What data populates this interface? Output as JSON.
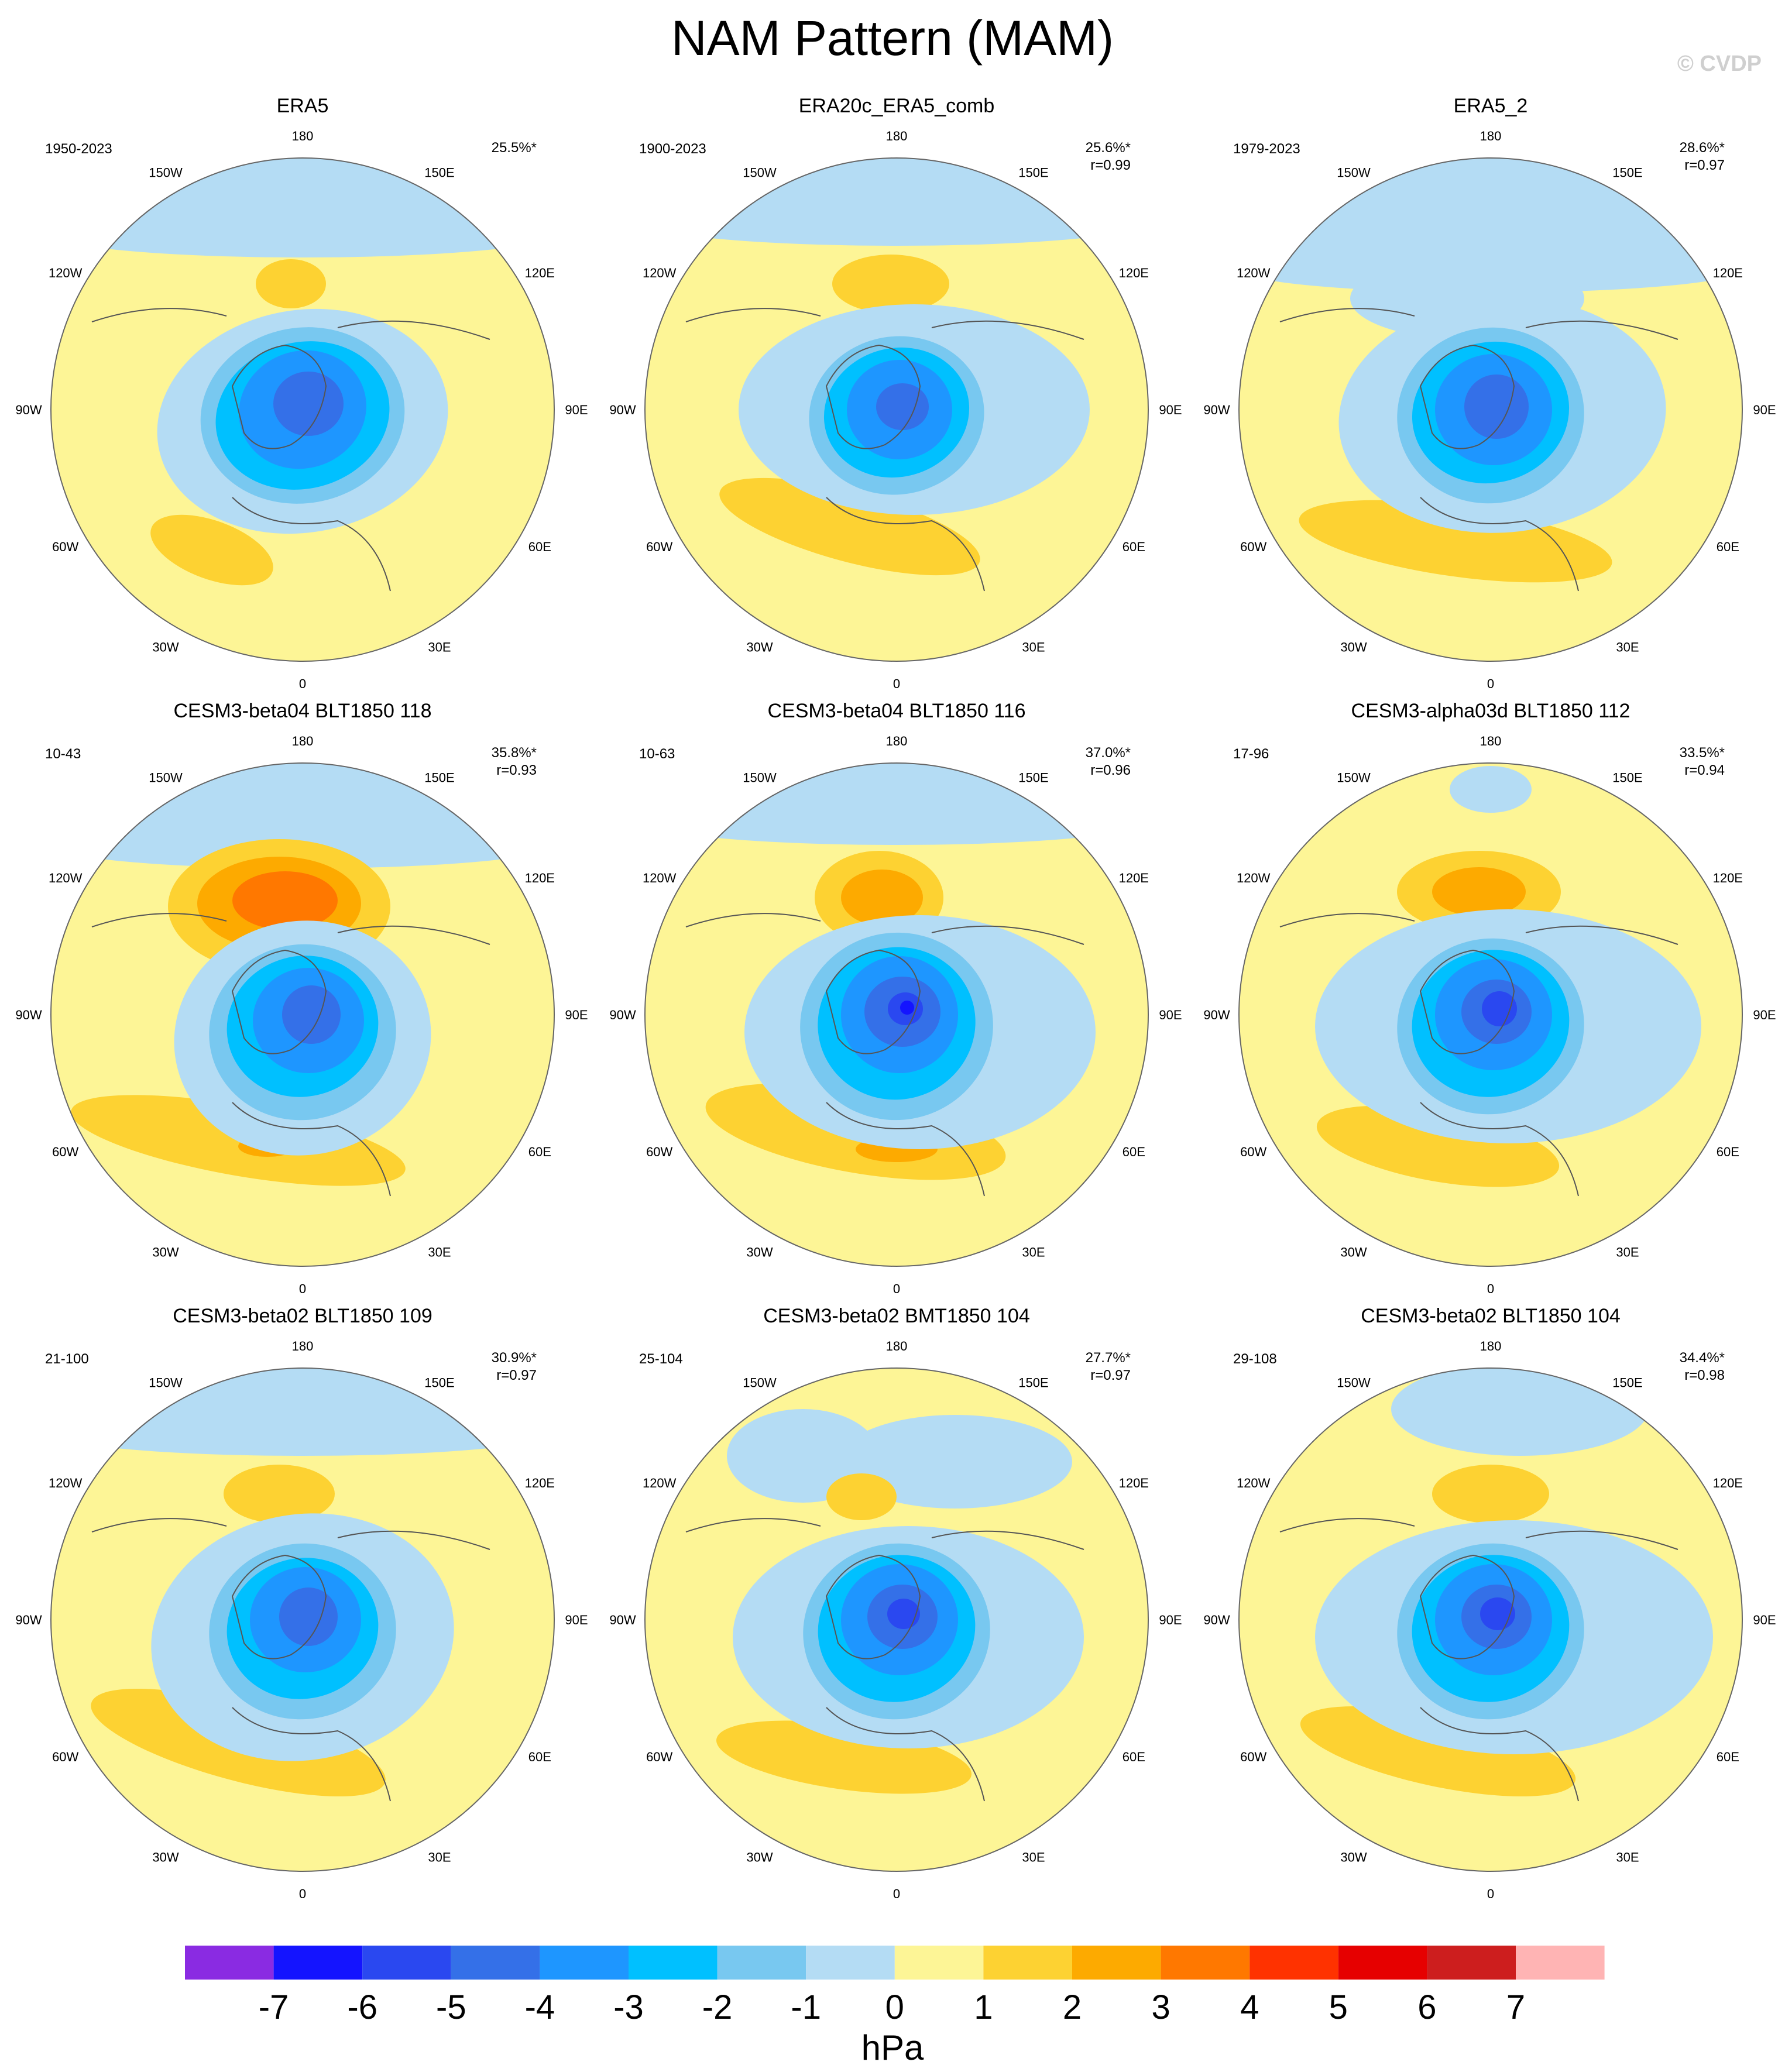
{
  "title": "NAM Pattern (MAM)",
  "watermark": "© CVDP",
  "units": "hPa",
  "lon_labels": [
    "180",
    "150E",
    "120E",
    "90E",
    "60E",
    "30E",
    "0",
    "30W",
    "60W",
    "90W",
    "120W",
    "150W"
  ],
  "chart_data": {
    "type": "contour-map",
    "projection": "north-polar-stereographic",
    "levels": [
      -7,
      -6,
      -5,
      -4,
      -3,
      -2,
      -1,
      0,
      1,
      2,
      3,
      4,
      5,
      6,
      7
    ],
    "colors": [
      "#8a2be2",
      "#1414ff",
      "#2a48f0",
      "#3470e8",
      "#1e96ff",
      "#00c0ff",
      "#78c8f0",
      "#b4dcf4",
      "#fdf596",
      "#fdd232",
      "#fdaa00",
      "#ff7800",
      "#ff3200",
      "#e60000",
      "#cd1e1e",
      "#ffb4b4"
    ],
    "panels": [
      {
        "name": "ERA5",
        "period": "1950-2023",
        "pct": "25.5%*",
        "r": ""
      },
      {
        "name": "ERA20c_ERA5_comb",
        "period": "1900-2023",
        "pct": "25.6%*",
        "r": "r=0.99"
      },
      {
        "name": "ERA5_2",
        "period": "1979-2023",
        "pct": "28.6%*",
        "r": "r=0.97"
      },
      {
        "name": "CESM3-beta04 BLT1850 118",
        "period": "10-43",
        "pct": "35.8%*",
        "r": "r=0.93"
      },
      {
        "name": "CESM3-beta04 BLT1850 116",
        "period": "10-63",
        "pct": "37.0%*",
        "r": "r=0.96"
      },
      {
        "name": "CESM3-alpha03d BLT1850 112",
        "period": "17-96",
        "pct": "33.5%*",
        "r": "r=0.94"
      },
      {
        "name": "CESM3-beta02 BLT1850 109",
        "period": "21-100",
        "pct": "30.9%*",
        "r": "r=0.97"
      },
      {
        "name": "CESM3-beta02 BMT1850 104",
        "period": "25-104",
        "pct": "27.7%*",
        "r": "r=0.97"
      },
      {
        "name": "CESM3-beta02 BLT1850 104",
        "period": "29-108",
        "pct": "34.4%*",
        "r": "r=0.98"
      }
    ]
  }
}
